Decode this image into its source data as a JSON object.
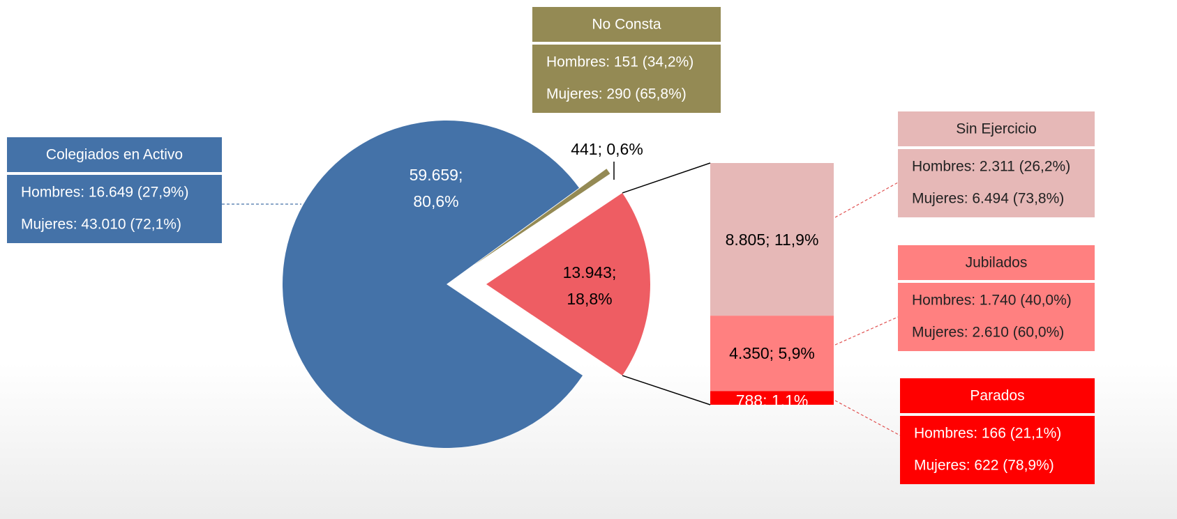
{
  "chart_data": {
    "type": "pie",
    "categories": [
      "Colegiados en Activo",
      "No Consta",
      null
    ],
    "values": [
      59659,
      441,
      13943
    ],
    "value_labels": [
      "59.659;\n80,6%",
      "441; 0,6%",
      "13.943;\n18,8%"
    ],
    "colors": [
      "#4472a8",
      "#948a54",
      "#ee5d63"
    ],
    "details": [
      [
        "Hombres: 16.649 (27,9%)",
        "Mujeres: 43.010 (72,1%)"
      ],
      [
        "Hombres: 151 (34,2%)",
        "Mujeres: 290 (65,8%)"
      ],
      null
    ],
    "bar": {
      "categories": [
        "Sin Ejercicio",
        "Jubilados",
        "Parados"
      ],
      "values": [
        8805,
        4350,
        788
      ],
      "value_labels": [
        "8.805; 11,9%",
        "4.350; 5,9%",
        "788; 1,1%"
      ],
      "colors": [
        "#e6b8b7",
        "#ff8080",
        "#ff0000"
      ],
      "details": [
        [
          "Hombres: 2.311 (26,2%)",
          "Mujeres: 6.494 (73,8%)"
        ],
        [
          "Hombres: 1.740 (40,0%)",
          "Mujeres: 2.610 (60,0%)"
        ],
        [
          "Hombres: 166 (21,1%)",
          "Mujeres: 622 (78,9%)"
        ]
      ]
    }
  }
}
